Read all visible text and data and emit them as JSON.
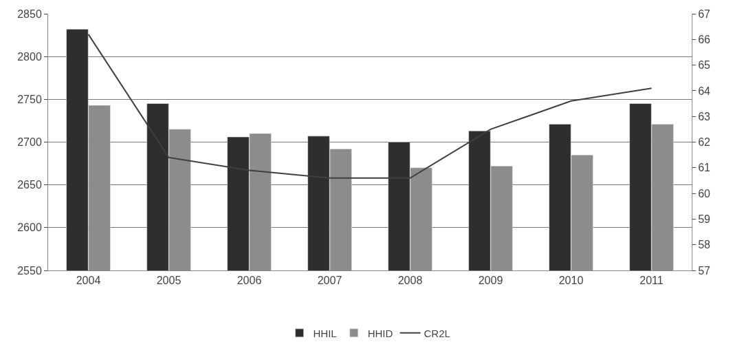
{
  "chart_data": {
    "type": "bar",
    "categories": [
      "2004",
      "2005",
      "2006",
      "2007",
      "2008",
      "2009",
      "2010",
      "2011"
    ],
    "series": [
      {
        "name": "HHIL",
        "color": "#2e2e2e",
        "values": [
          2832,
          2745,
          2706,
          2707,
          2700,
          2713,
          2721,
          2745
        ]
      },
      {
        "name": "HHID",
        "color": "#8c8c8c",
        "values": [
          2743,
          2715,
          2710,
          2692,
          2670,
          2672,
          2685,
          2721
        ]
      },
      {
        "name": "CR2L",
        "color": "#404040",
        "type": "line",
        "axis": "y2",
        "values": [
          66.2,
          61.4,
          60.9,
          60.6,
          60.6,
          62.5,
          63.6,
          64.1
        ]
      }
    ],
    "ylim": [
      2550,
      2850
    ],
    "yticks": [
      2550,
      2600,
      2650,
      2700,
      2750,
      2800,
      2850
    ],
    "y2lim": [
      57,
      67
    ],
    "y2ticks": [
      57,
      58,
      59,
      60,
      61,
      62,
      63,
      64,
      65,
      66,
      67
    ],
    "grid": "y",
    "legend": "bottom",
    "marker": "none",
    "line_style": "solid"
  }
}
